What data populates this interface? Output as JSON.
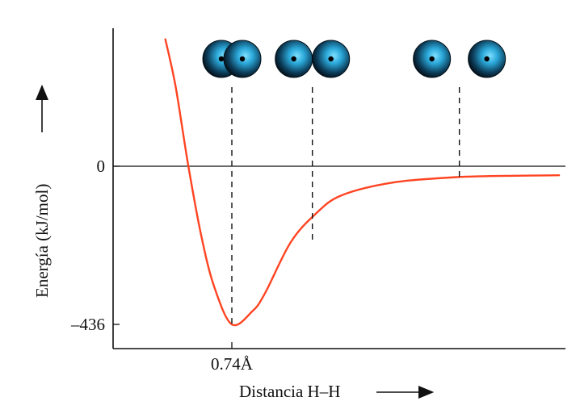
{
  "chart_data": {
    "type": "line",
    "xlabel": "Distancia H–H",
    "ylabel": "Energía (kJ/mol)",
    "yticks": [
      {
        "value": 0,
        "label": "0"
      },
      {
        "value": -436,
        "label": "–436"
      }
    ],
    "xticks": [
      {
        "value": 0.74,
        "label": "0.74Å"
      }
    ],
    "xlim": [
      0.2,
      3.35
    ],
    "ylim": [
      -500,
      365
    ],
    "series": [
      {
        "color": "#ff4422",
        "x": [
          0.22,
          0.3,
          0.4,
          0.5,
          0.6,
          0.74,
          0.9,
          1.0,
          1.2,
          1.4,
          1.6,
          2.0,
          2.5,
          3.0,
          3.3
        ],
        "y": [
          350,
          220,
          0,
          -190,
          -330,
          -436,
          -400,
          -350,
          -210,
          -130,
          -80,
          -45,
          -30,
          -26,
          -25
        ]
      }
    ],
    "markers": [
      {
        "x": 0.74,
        "y_bottom": -436,
        "molecule": "h2-bonded",
        "color": "#2aa7d8"
      },
      {
        "x": 1.37,
        "y_bottom": -207,
        "molecule": "h2-touching",
        "color": "#2aa7d8"
      },
      {
        "x": 2.52,
        "y_bottom": -30,
        "molecule": "h-atoms-separated",
        "color": "#2aa7d8"
      }
    ]
  }
}
